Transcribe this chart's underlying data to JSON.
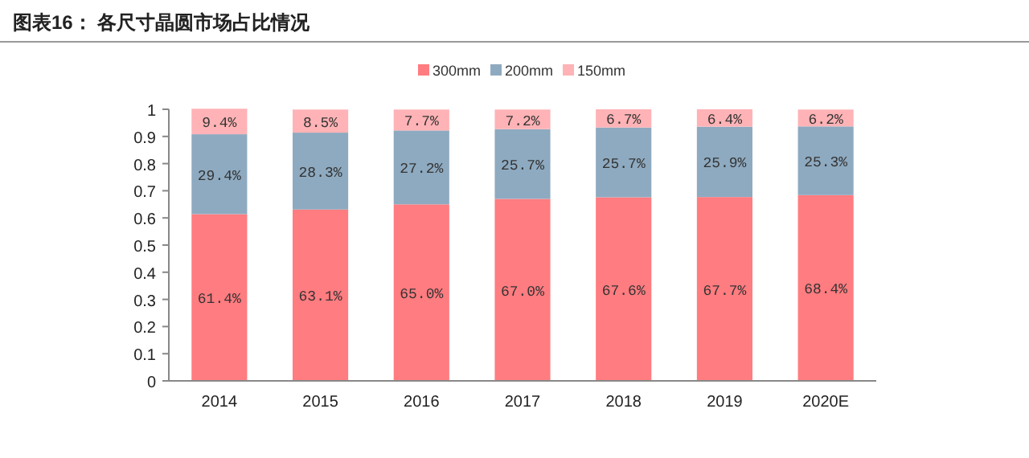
{
  "chart_data": {
    "type": "bar",
    "title": "图表16：  各尺寸晶圆市场占比情况",
    "stacked": true,
    "legend": "top",
    "grid": false,
    "categories": [
      "2014",
      "2015",
      "2016",
      "2017",
      "2018",
      "2019",
      "2020E"
    ],
    "ylim": [
      0,
      1
    ],
    "yticks": [
      0,
      0.1,
      0.2,
      0.3,
      0.4,
      0.5,
      0.6,
      0.7,
      0.8,
      0.9,
      1
    ],
    "series": [
      {
        "name": "300mm",
        "color": "#ff7c80",
        "values": [
          0.614,
          0.631,
          0.65,
          0.67,
          0.676,
          0.677,
          0.684
        ],
        "value_labels": [
          "61.4%",
          "63.1%",
          "65.0%",
          "67.0%",
          "67.6%",
          "67.7%",
          "68.4%"
        ]
      },
      {
        "name": "200mm",
        "color": "#8eaac0",
        "values": [
          0.294,
          0.283,
          0.272,
          0.257,
          0.257,
          0.259,
          0.253
        ],
        "value_labels": [
          "29.4%",
          "28.3%",
          "27.2%",
          "25.7%",
          "25.7%",
          "25.9%",
          "25.3%"
        ]
      },
      {
        "name": "150mm",
        "color": "#ffb3b6",
        "values": [
          0.094,
          0.085,
          0.077,
          0.072,
          0.067,
          0.064,
          0.062
        ],
        "value_labels": [
          "9.4%",
          "8.5%",
          "7.7%",
          "7.2%",
          "6.7%",
          "6.4%",
          "6.2%"
        ]
      }
    ]
  }
}
